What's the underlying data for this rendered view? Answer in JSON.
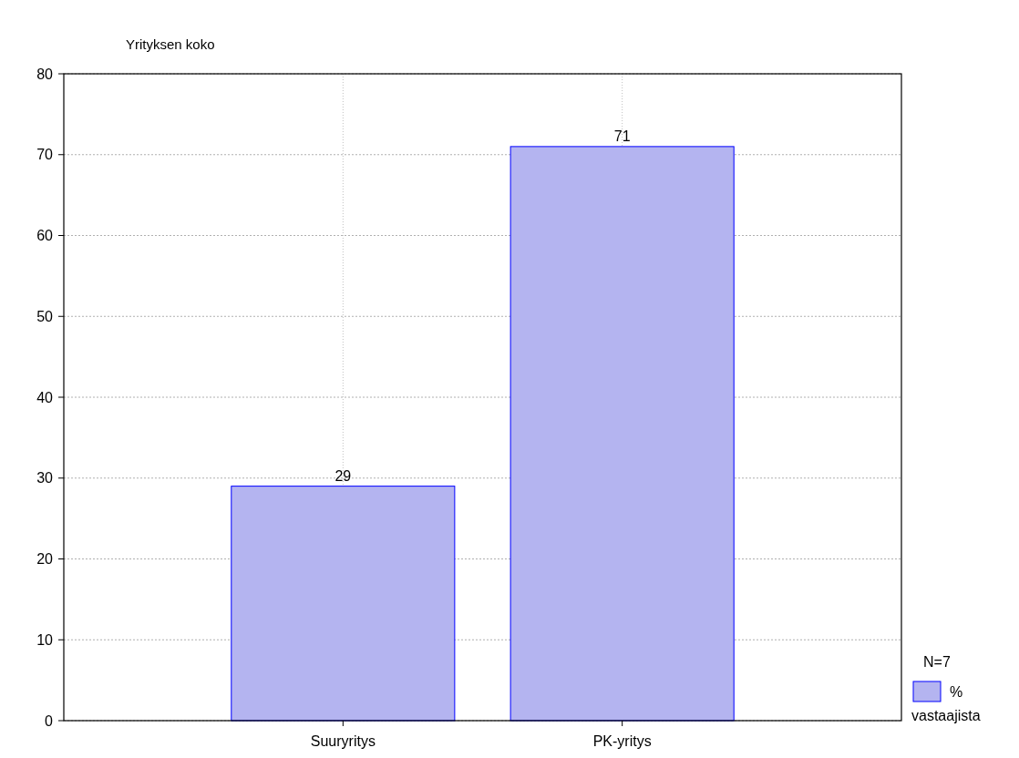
{
  "chart_data": {
    "type": "bar",
    "title": "Yrityksen koko",
    "categories": [
      "Suuryritys",
      "PK-yritys"
    ],
    "series": [
      {
        "name": "% vastaajista",
        "color": "#b4b4f0",
        "values": [
          29,
          71
        ]
      }
    ],
    "ylim": [
      0,
      80
    ],
    "yticks": [
      0,
      10,
      20,
      30,
      40,
      50,
      60,
      70,
      80
    ],
    "grid": true,
    "data_labels": true,
    "legend": "bottom right",
    "legend_title": "N=7"
  }
}
